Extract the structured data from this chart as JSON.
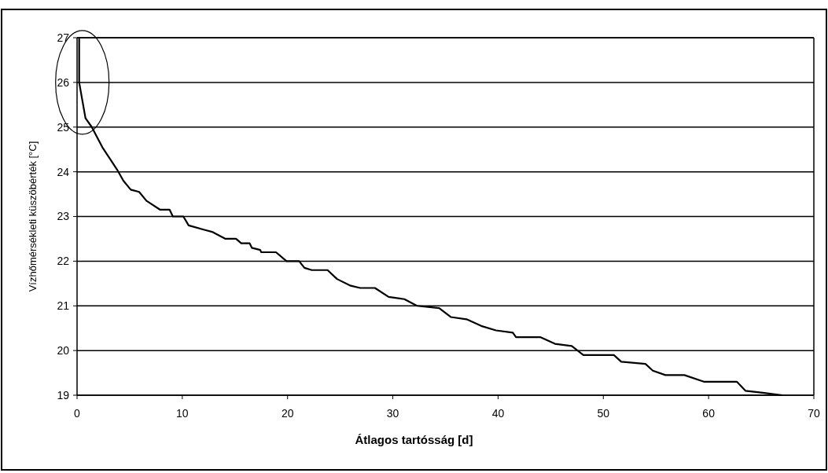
{
  "chart_data": {
    "type": "line",
    "xlabel": "Átlagos tartósság [d]",
    "ylabel": "Vízhőmérsékleti küszöbérték [°C]",
    "xlim": [
      0,
      70
    ],
    "xticks": [
      0,
      10,
      20,
      30,
      40,
      50,
      60,
      70
    ],
    "ylim": [
      19,
      27
    ],
    "yticks": [
      19,
      20,
      21,
      22,
      23,
      24,
      25,
      26,
      27
    ],
    "grid": "y",
    "line_style": "solid",
    "marker": "none",
    "series": [
      {
        "color": "#000000",
        "x": [
          0.2,
          0.2,
          0.8,
          1.4,
          2.4,
          3.8,
          4.4,
          5.1,
          5.9,
          6.6,
          7.9,
          8.8,
          9.1,
          10.1,
          10.6,
          12.1,
          12.9,
          14.1,
          15.1,
          15.6,
          16.4,
          16.6,
          17.4,
          17.5,
          18.9,
          19.9,
          21.1,
          21.6,
          22.3,
          23.8,
          24.7,
          26.0,
          26.9,
          28.3,
          29.6,
          31.1,
          32.3,
          34.4,
          35.5,
          37.0,
          38.4,
          39.8,
          41.4,
          41.7,
          44.0,
          45.4,
          47.0,
          48.1,
          51.0,
          51.7,
          54.0,
          54.7,
          55.9,
          57.7,
          59.6,
          62.7,
          63.5,
          65.3,
          67.0
        ],
        "values": [
          27,
          26,
          25.2,
          25,
          24.55,
          24.05,
          23.8,
          23.6,
          23.55,
          23.35,
          23.15,
          23.15,
          23,
          23,
          22.8,
          22.7,
          22.65,
          22.5,
          22.5,
          22.4,
          22.4,
          22.3,
          22.25,
          22.2,
          22.2,
          22,
          22,
          21.85,
          21.8,
          21.8,
          21.6,
          21.45,
          21.4,
          21.4,
          21.2,
          21.15,
          21,
          20.95,
          20.75,
          20.7,
          20.55,
          20.45,
          20.4,
          20.3,
          20.3,
          20.15,
          20.1,
          19.9,
          19.9,
          19.75,
          19.7,
          19.55,
          19.45,
          19.45,
          19.3,
          19.3,
          19.1,
          19.05,
          19
        ]
      }
    ]
  }
}
